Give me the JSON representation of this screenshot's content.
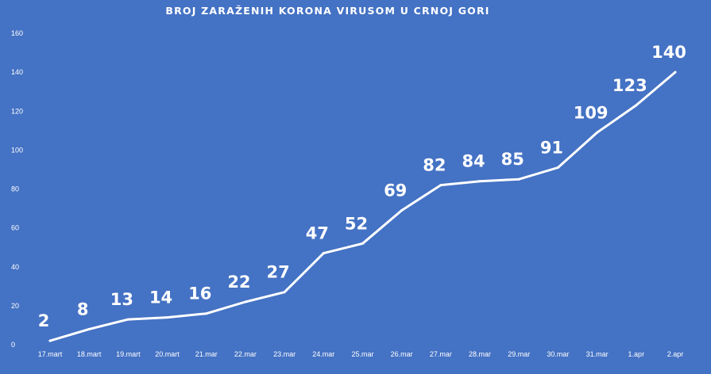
{
  "chart_data": {
    "type": "line",
    "title": "BROJ ZARAŽENIH KORONA VIRUSOM U CRNOJ GORI",
    "categories": [
      "17.mart",
      "18.mart",
      "19.mart",
      "20.mart",
      "21.mar",
      "22.mar",
      "23.mar",
      "24.mar",
      "25.mar",
      "26.mar",
      "27.mar",
      "28.mar",
      "29.mar",
      "30.mar",
      "31.mar",
      "1.apr",
      "2.apr"
    ],
    "series": [
      {
        "values": [
          2,
          8,
          13,
          14,
          16,
          22,
          27,
          47,
          52,
          69,
          82,
          84,
          85,
          91,
          109,
          123,
          140
        ]
      }
    ],
    "ylim": [
      0,
      160
    ],
    "yticks": [
      0,
      20,
      40,
      60,
      80,
      100,
      120,
      140,
      160
    ],
    "grid": false,
    "drop_lines": true,
    "data_labels": true,
    "colors": {
      "background": "#4472c4",
      "line": "#ffffff",
      "text": "#ffffff"
    }
  }
}
